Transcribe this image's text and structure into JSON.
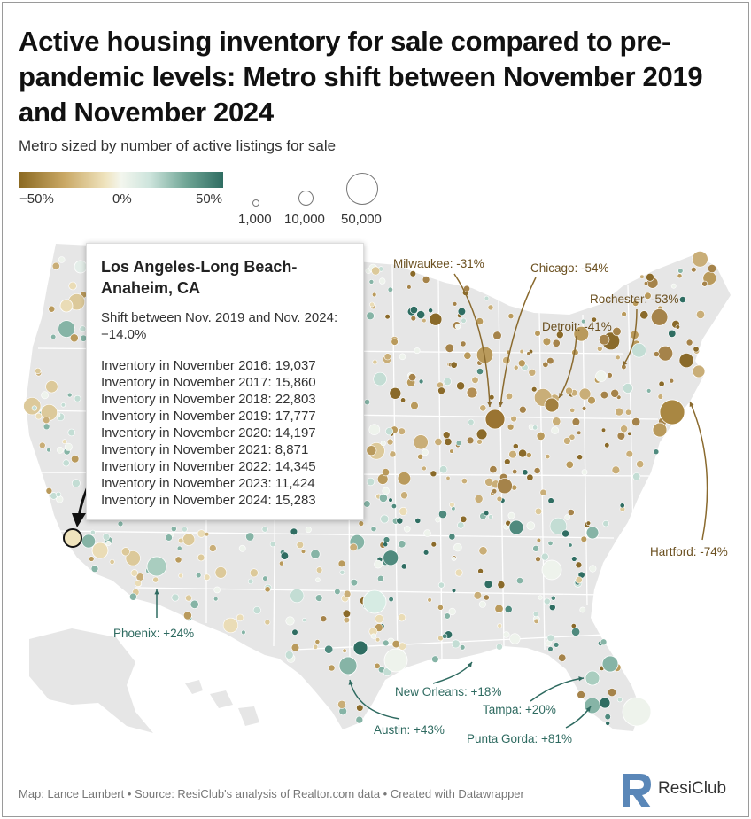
{
  "title": "Active housing inventory for sale compared to pre-pandemic levels: Metro shift between November 2019 and November 2024",
  "subtitle": "Metro sized by number of active listings for sale",
  "color_legend": {
    "labels": [
      "−50%",
      "0%",
      "50%"
    ],
    "low_color": "#8c6a22",
    "mid_color": "#f3f6ee",
    "high_color": "#2f6d62"
  },
  "size_legend": {
    "labels": [
      "1,000",
      "10,000",
      "50,000"
    ]
  },
  "tooltip": {
    "metro": "Los Angeles-Long Beach-Anaheim, CA",
    "shift_label": "Shift between Nov. 2019 and Nov. 2024:",
    "shift_value": "−14.0%",
    "rows": [
      "Inventory in November 2016: 19,037",
      "Inventory in November 2017: 15,860",
      "Inventory in November 2018: 22,803",
      "Inventory in November 2019: 17,777",
      "Inventory in November 2020: 14,197",
      "Inventory in November 2021: 8,871",
      "Inventory in November 2022: 14,345",
      "Inventory in November 2023: 11,424",
      "Inventory in November 2024: 15,283"
    ]
  },
  "callouts": [
    {
      "label": "Milwaukee: -31%",
      "metro": "Milwaukee",
      "shift_pct": -31
    },
    {
      "label": "Chicago: -54%",
      "metro": "Chicago",
      "shift_pct": -54
    },
    {
      "label": "Rochester: -53%",
      "metro": "Rochester",
      "shift_pct": -53
    },
    {
      "label": "Detroit: -41%",
      "metro": "Detroit",
      "shift_pct": -41
    },
    {
      "label": "Hartford: -74%",
      "metro": "Hartford",
      "shift_pct": -74
    },
    {
      "label": "Phoenix: +24%",
      "metro": "Phoenix",
      "shift_pct": 24
    },
    {
      "label": "New Orleans: +18%",
      "metro": "New Orleans",
      "shift_pct": 18
    },
    {
      "label": "Tampa: +20%",
      "metro": "Tampa",
      "shift_pct": 20
    },
    {
      "label": "Austin: +43%",
      "metro": "Austin",
      "shift_pct": 43
    },
    {
      "label": "Punta Gorda: +81%",
      "metro": "Punta Gorda",
      "shift_pct": 81
    }
  ],
  "footer": "Map: Lance Lambert • Source: ResiClub's analysis of Realtor.com data • Created with Datawrapper",
  "logo": {
    "text": "ResiClub",
    "color": "#5a87b8"
  },
  "colors": {
    "map_fill": "#e8e8e8",
    "state_border": "#ffffff",
    "arrow": "#8a6a2e",
    "arrow_teal": "#2e6a60"
  }
}
